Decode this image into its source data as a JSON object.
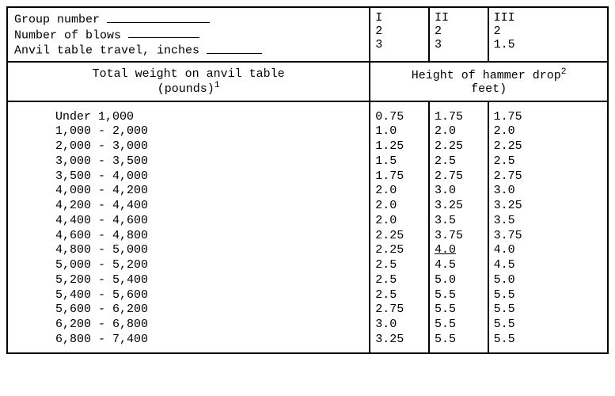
{
  "type": "table",
  "background_color": "#ffffff",
  "text_color": "#000000",
  "border_color": "#000000",
  "font_family": "Courier New",
  "font_size_pt": 12,
  "header_fields": {
    "group_number_label": "Group number",
    "number_of_blows_label": "Number of blows",
    "anvil_travel_label": "Anvil table travel, inches"
  },
  "groups": [
    {
      "group": "I",
      "blows": "2",
      "travel": "3"
    },
    {
      "group": "II",
      "blows": "2",
      "travel": "3"
    },
    {
      "group": "III",
      "blows": "2",
      "travel": "1.5"
    }
  ],
  "section_headers": {
    "weight_label_line1": "Total weight on anvil table",
    "weight_label_line2": "(pounds)",
    "weight_footnote": "1",
    "drop_label_line1": "Height of hammer drop",
    "drop_footnote": "2",
    "drop_label_line2": "feet)"
  },
  "columns": [
    "weight_range",
    "drop_I",
    "drop_II",
    "drop_III"
  ],
  "rows": [
    {
      "weight": "Under   1,000",
      "d1": "0.75",
      "d2": "1.75",
      "d3": "1.75"
    },
    {
      "weight": "1,000 - 2,000",
      "d1": "1.0",
      "d2": "2.0",
      "d3": "2.0"
    },
    {
      "weight": "2,000 - 3,000",
      "d1": "1.25",
      "d2": "2.25",
      "d3": "2.25"
    },
    {
      "weight": "3,000 - 3,500",
      "d1": "1.5",
      "d2": "2.5",
      "d3": "2.5"
    },
    {
      "weight": "3,500 - 4,000",
      "d1": "1.75",
      "d2": "2.75",
      "d3": "2.75"
    },
    {
      "weight": "4,000 - 4,200",
      "d1": "2.0",
      "d2": "3.0",
      "d3": "3.0"
    },
    {
      "weight": "4,200 - 4,400",
      "d1": "2.0",
      "d2": "3.25",
      "d3": "3.25"
    },
    {
      "weight": "4,400 - 4,600",
      "d1": "2.0",
      "d2": "3.5",
      "d3": "3.5"
    },
    {
      "weight": "4,600 - 4,800",
      "d1": "2.25",
      "d2": "3.75",
      "d3": "3.75"
    },
    {
      "weight": "4,800 - 5,000",
      "d1": "2.25",
      "d2": "4.0",
      "d3": "4.0",
      "d2_underline": true
    },
    {
      "weight": "5,000 - 5,200",
      "d1": "2.5",
      "d2": "4.5",
      "d3": "4.5"
    },
    {
      "weight": "5,200 - 5,400",
      "d1": "2.5",
      "d2": "5.0",
      "d3": "5.0"
    },
    {
      "weight": "5,400 - 5,600",
      "d1": "2.5",
      "d2": "5.5",
      "d3": "5.5"
    },
    {
      "weight": "5,600 - 6,200",
      "d1": "2.75",
      "d2": "5.5",
      "d3": "5.5"
    },
    {
      "weight": "6,200 - 6,800",
      "d1": "3.0",
      "d2": "5.5",
      "d3": "5.5"
    },
    {
      "weight": "6,800 - 7,400",
      "d1": "3.25",
      "d2": "5.5",
      "d3": "5.5"
    }
  ]
}
